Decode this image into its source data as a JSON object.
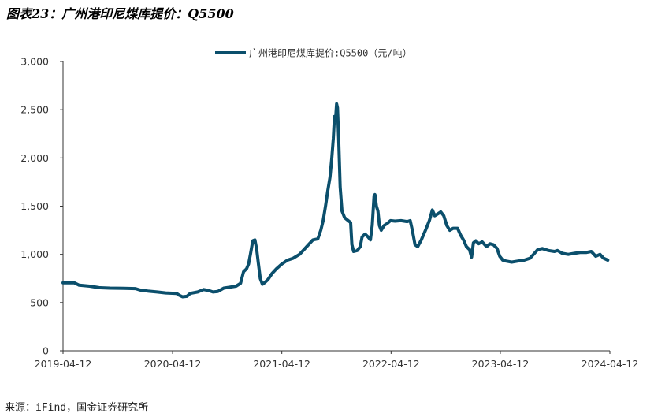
{
  "figure": {
    "title": "图表23：广州港印尼煤库提价：Q5500",
    "source": "来源：iFind，国金证券研究所"
  },
  "colors": {
    "series": "#0b4f6c",
    "axis": "#333333",
    "rule": "#4a7fa0"
  },
  "chart_data": {
    "type": "line",
    "title": "",
    "xlabel": "",
    "ylabel": "",
    "grid": false,
    "legend_position": "top-center",
    "x_ticks": [
      "2019-04-12",
      "2020-04-12",
      "2021-04-12",
      "2022-04-12",
      "2023-04-12",
      "2024-04-12"
    ],
    "y_ticks": [
      "0",
      "500",
      "1,000",
      "1,500",
      "2,000",
      "2,500",
      "3,000"
    ],
    "ylim": [
      0,
      3000
    ],
    "xlim": [
      "2019-04-12",
      "2024-04-12"
    ],
    "series": [
      {
        "name": "广州港印尼煤库提价:Q5500（元/吨）",
        "points": [
          [
            "2019-04-12",
            705
          ],
          [
            "2019-05-20",
            705
          ],
          [
            "2019-06-05",
            680
          ],
          [
            "2019-07-10",
            670
          ],
          [
            "2019-08-10",
            655
          ],
          [
            "2019-09-15",
            650
          ],
          [
            "2019-11-01",
            648
          ],
          [
            "2019-12-10",
            645
          ],
          [
            "2019-12-25",
            630
          ],
          [
            "2020-01-20",
            620
          ],
          [
            "2020-02-20",
            610
          ],
          [
            "2020-03-20",
            600
          ],
          [
            "2020-04-25",
            595
          ],
          [
            "2020-05-05",
            575
          ],
          [
            "2020-05-15",
            560
          ],
          [
            "2020-05-30",
            565
          ],
          [
            "2020-06-10",
            595
          ],
          [
            "2020-07-05",
            610
          ],
          [
            "2020-07-25",
            635
          ],
          [
            "2020-08-10",
            625
          ],
          [
            "2020-08-25",
            610
          ],
          [
            "2020-09-10",
            615
          ],
          [
            "2020-09-30",
            650
          ],
          [
            "2020-10-20",
            660
          ],
          [
            "2020-11-10",
            670
          ],
          [
            "2020-11-25",
            700
          ],
          [
            "2020-12-05",
            820
          ],
          [
            "2020-12-15",
            850
          ],
          [
            "2020-12-22",
            900
          ],
          [
            "2020-12-28",
            1000
          ],
          [
            "2021-01-05",
            1140
          ],
          [
            "2021-01-12",
            1150
          ],
          [
            "2021-01-18",
            1050
          ],
          [
            "2021-01-24",
            900
          ],
          [
            "2021-01-30",
            750
          ],
          [
            "2021-02-06",
            690
          ],
          [
            "2021-02-15",
            710
          ],
          [
            "2021-02-25",
            740
          ],
          [
            "2021-03-10",
            800
          ],
          [
            "2021-03-25",
            850
          ],
          [
            "2021-04-12",
            900
          ],
          [
            "2021-05-01",
            940
          ],
          [
            "2021-05-20",
            960
          ],
          [
            "2021-06-10",
            1000
          ],
          [
            "2021-06-25",
            1050
          ],
          [
            "2021-07-10",
            1100
          ],
          [
            "2021-07-25",
            1150
          ],
          [
            "2021-08-10",
            1160
          ],
          [
            "2021-08-20",
            1250
          ],
          [
            "2021-08-28",
            1350
          ],
          [
            "2021-09-05",
            1500
          ],
          [
            "2021-09-12",
            1650
          ],
          [
            "2021-09-20",
            1800
          ],
          [
            "2021-09-26",
            2000
          ],
          [
            "2021-10-01",
            2200
          ],
          [
            "2021-10-05",
            2430
          ],
          [
            "2021-10-08",
            2380
          ],
          [
            "2021-10-12",
            2560
          ],
          [
            "2021-10-15",
            2520
          ],
          [
            "2021-10-19",
            2200
          ],
          [
            "2021-10-24",
            1700
          ],
          [
            "2021-10-30",
            1450
          ],
          [
            "2021-11-08",
            1380
          ],
          [
            "2021-11-20",
            1350
          ],
          [
            "2021-11-28",
            1330
          ],
          [
            "2021-12-02",
            1100
          ],
          [
            "2021-12-08",
            1030
          ],
          [
            "2021-12-20",
            1040
          ],
          [
            "2021-12-30",
            1080
          ],
          [
            "2022-01-05",
            1180
          ],
          [
            "2022-01-15",
            1210
          ],
          [
            "2022-01-25",
            1180
          ],
          [
            "2022-02-02",
            1150
          ],
          [
            "2022-02-08",
            1300
          ],
          [
            "2022-02-14",
            1600
          ],
          [
            "2022-02-17",
            1620
          ],
          [
            "2022-02-22",
            1500
          ],
          [
            "2022-02-27",
            1450
          ],
          [
            "2022-03-04",
            1300
          ],
          [
            "2022-03-10",
            1250
          ],
          [
            "2022-03-20",
            1300
          ],
          [
            "2022-03-30",
            1320
          ],
          [
            "2022-04-10",
            1350
          ],
          [
            "2022-04-25",
            1345
          ],
          [
            "2022-05-15",
            1350
          ],
          [
            "2022-06-05",
            1340
          ],
          [
            "2022-06-15",
            1350
          ],
          [
            "2022-06-22",
            1250
          ],
          [
            "2022-07-01",
            1100
          ],
          [
            "2022-07-10",
            1080
          ],
          [
            "2022-07-22",
            1150
          ],
          [
            "2022-08-05",
            1250
          ],
          [
            "2022-08-18",
            1350
          ],
          [
            "2022-08-28",
            1460
          ],
          [
            "2022-09-05",
            1400
          ],
          [
            "2022-09-15",
            1420
          ],
          [
            "2022-09-25",
            1440
          ],
          [
            "2022-10-05",
            1400
          ],
          [
            "2022-10-15",
            1300
          ],
          [
            "2022-10-25",
            1250
          ],
          [
            "2022-11-05",
            1270
          ],
          [
            "2022-11-20",
            1270
          ],
          [
            "2022-11-30",
            1200
          ],
          [
            "2022-12-10",
            1150
          ],
          [
            "2022-12-20",
            1080
          ],
          [
            "2022-12-30",
            1050
          ],
          [
            "2023-01-06",
            970
          ],
          [
            "2023-01-12",
            1120
          ],
          [
            "2023-01-20",
            1140
          ],
          [
            "2023-01-30",
            1110
          ],
          [
            "2023-02-10",
            1130
          ],
          [
            "2023-02-25",
            1080
          ],
          [
            "2023-03-08",
            1110
          ],
          [
            "2023-03-20",
            1100
          ],
          [
            "2023-04-01",
            1060
          ],
          [
            "2023-04-10",
            980
          ],
          [
            "2023-04-20",
            940
          ],
          [
            "2023-05-01",
            930
          ],
          [
            "2023-05-20",
            920
          ],
          [
            "2023-06-10",
            930
          ],
          [
            "2023-07-01",
            940
          ],
          [
            "2023-07-20",
            960
          ],
          [
            "2023-08-01",
            1000
          ],
          [
            "2023-08-15",
            1050
          ],
          [
            "2023-08-30",
            1060
          ],
          [
            "2023-09-20",
            1040
          ],
          [
            "2023-10-10",
            1030
          ],
          [
            "2023-10-20",
            1040
          ],
          [
            "2023-11-05",
            1010
          ],
          [
            "2023-11-25",
            1000
          ],
          [
            "2023-12-15",
            1010
          ],
          [
            "2024-01-05",
            1020
          ],
          [
            "2024-01-25",
            1020
          ],
          [
            "2024-02-10",
            1030
          ],
          [
            "2024-02-25",
            980
          ],
          [
            "2024-03-10",
            1000
          ],
          [
            "2024-03-22",
            960
          ],
          [
            "2024-04-05",
            940
          ]
        ]
      }
    ]
  }
}
